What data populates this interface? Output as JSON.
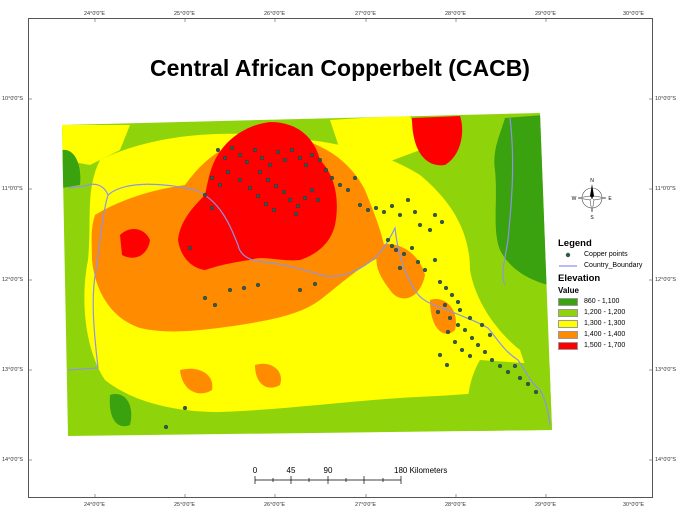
{
  "map": {
    "title": "Central African Copperbelt (CACB)",
    "top_ticks": [
      "24°0'0\"E",
      "25°0'0\"E",
      "26°0'0\"E",
      "27°0'0\"E",
      "28°0'0\"E",
      "29°0'0\"E",
      "30°0'0\"E"
    ],
    "bottom_ticks": [
      "24°0'0\"E",
      "25°0'0\"E",
      "26°0'0\"E",
      "27°0'0\"E",
      "28°0'0\"E",
      "29°0'0\"E",
      "30°0'0\"E"
    ],
    "left_ticks": [
      "10°0'0\"S",
      "11°0'0\"S",
      "12°0'0\"S",
      "13°0'0\"S",
      "14°0'0\"S"
    ],
    "right_ticks": [
      "10°0'0\"S",
      "11°0'0\"S",
      "12°0'0\"S",
      "13°0'0\"S",
      "14°0'0\"S"
    ],
    "north_arrow": {
      "n": "N",
      "s": "S",
      "e": "E",
      "w": "W"
    },
    "scale_bar": {
      "labels": [
        "0",
        "45",
        "90",
        "180 Kilometers"
      ]
    }
  },
  "legend": {
    "heading": "Legend",
    "points_label": "Copper points",
    "boundary_label": "Country_Boundary",
    "elevation_heading": "Elevation",
    "value_heading": "Value",
    "classes": [
      {
        "label": "860 - 1,100",
        "color": "#3aa10f"
      },
      {
        "label": "1,200 - 1,200",
        "color": "#8fd40b"
      },
      {
        "label": "1,300 - 1,300",
        "color": "#ffff00"
      },
      {
        "label": "1,400 - 1,400",
        "color": "#ff8c00"
      },
      {
        "label": "1,500 - 1,700",
        "color": "#ff0000"
      }
    ],
    "point_color": "#2e5a50",
    "boundary_color": "#8f93e6"
  }
}
